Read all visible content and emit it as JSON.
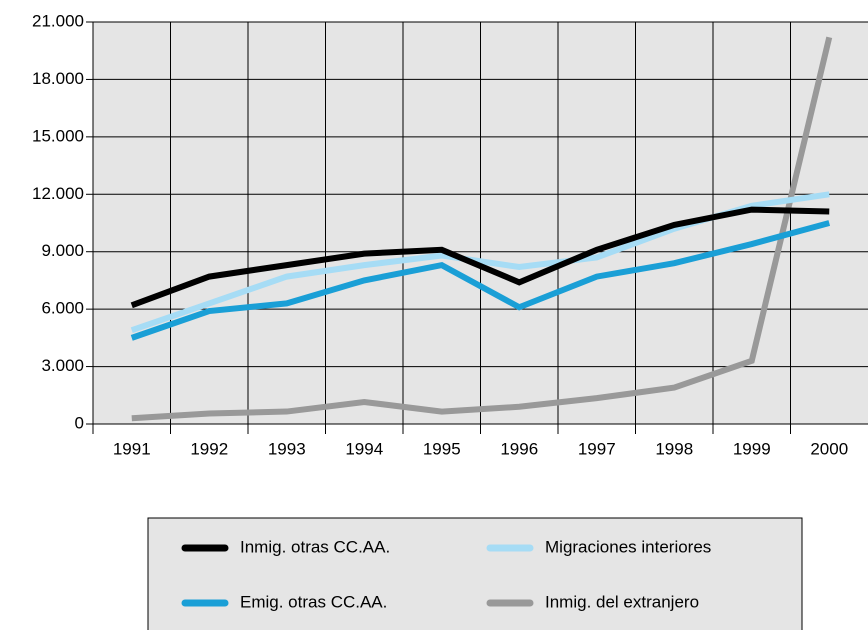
{
  "chart_data": {
    "type": "line",
    "categories": [
      "1991",
      "1992",
      "1993",
      "1994",
      "1995",
      "1996",
      "1997",
      "1998",
      "1999",
      "2000"
    ],
    "series": [
      {
        "name": "Inmig. otras CC.AA.",
        "color": "#000000",
        "values": [
          6200,
          7700,
          8300,
          8900,
          9100,
          7400,
          9100,
          10400,
          11200,
          11100
        ]
      },
      {
        "name": "Migraciones interiores",
        "color": "#a6dcf5",
        "values": [
          4900,
          6300,
          7700,
          8300,
          8800,
          8200,
          8700,
          10200,
          11400,
          12000
        ]
      },
      {
        "name": "Emig. otras CC.AA.",
        "color": "#1a9fd6",
        "values": [
          4500,
          5900,
          6300,
          7500,
          8300,
          6100,
          7700,
          8400,
          9400,
          10500
        ]
      },
      {
        "name": "Inmig. del extranjero",
        "color": "#999999",
        "values": [
          300,
          550,
          650,
          1150,
          650,
          900,
          1350,
          1900,
          3300,
          20200
        ]
      }
    ],
    "ylim": [
      0,
      21000
    ],
    "yticks": [
      0,
      {
        "value": 3000,
        "label": "3.000"
      },
      {
        "value": 6000,
        "label": "6.000"
      },
      {
        "value": 9000,
        "label": "9.000"
      },
      {
        "value": 12000,
        "label": "12.000"
      },
      {
        "value": 15000,
        "label": "15.000"
      },
      {
        "value": 18000,
        "label": "18.000"
      },
      {
        "value": 21000,
        "label": "21.000"
      }
    ],
    "grid": true,
    "legend": "bottom"
  }
}
